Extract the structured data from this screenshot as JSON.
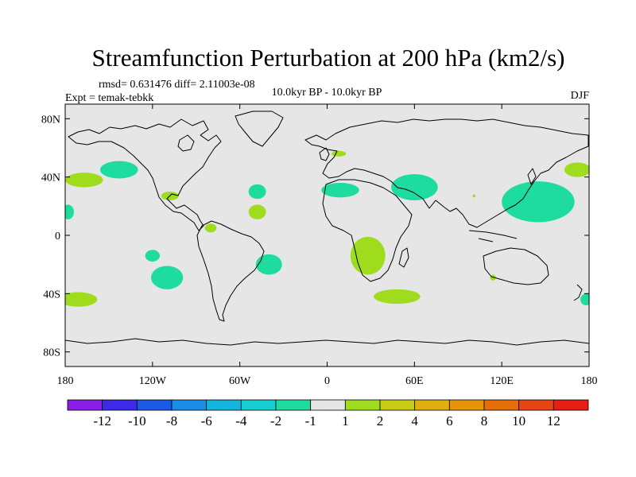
{
  "chart_data": {
    "type": "heatmap",
    "title": "Streamfunction Perturbation at 200 hPa (km2/s)",
    "stats": "rmsd= 0.631476 diff= 2.11003e-08",
    "expt": "Expt = temak-tebkk",
    "subtitle": "10.0kyr BP - 10.0kyr BP",
    "season": "DJF",
    "xlim": [
      -180,
      180
    ],
    "ylim": [
      -90,
      90
    ],
    "x_ticks": [
      {
        "value": -180,
        "label": "180"
      },
      {
        "value": -120,
        "label": "120W"
      },
      {
        "value": -60,
        "label": "60W"
      },
      {
        "value": 0,
        "label": "0"
      },
      {
        "value": 60,
        "label": "60E"
      },
      {
        "value": 120,
        "label": "120E"
      },
      {
        "value": 180,
        "label": "180"
      }
    ],
    "y_ticks": [
      {
        "value": 80,
        "label": "80N"
      },
      {
        "value": 40,
        "label": "40N"
      },
      {
        "value": 0,
        "label": "0"
      },
      {
        "value": -40,
        "label": "40S"
      },
      {
        "value": -80,
        "label": "80S"
      }
    ],
    "background_color": "#e6e6e6",
    "colorbar": {
      "colors": [
        "#8b1ee6",
        "#3c2ae6",
        "#1a5ae6",
        "#1a8ee6",
        "#14b4dc",
        "#16cfcf",
        "#1edca0",
        "#e6e6e6",
        "#a0dc1e",
        "#c8cc14",
        "#e0ae0e",
        "#e6940a",
        "#e66e0a",
        "#e64614",
        "#e61e14"
      ],
      "labels": [
        "-12",
        "-10",
        "-8",
        "-6",
        "-4",
        "-2",
        "-1",
        "1",
        "2",
        "4",
        "6",
        "8",
        "10",
        "12"
      ]
    },
    "anomalies": [
      {
        "name": "n-pacific-east-neg",
        "lon": -143,
        "lat": 45,
        "rlon": 13,
        "rlat": 6,
        "value": -1.5
      },
      {
        "name": "n-pacific-east-pos",
        "lon": -167,
        "lat": 38,
        "rlon": 13,
        "rlat": 5,
        "value": 1.5
      },
      {
        "name": "n-pacific-west-edge-pos",
        "lon": 172,
        "lat": 45,
        "rlon": 9,
        "rlat": 5,
        "value": 1.5
      },
      {
        "name": "w-pacific-neg",
        "lon": 145,
        "lat": 23,
        "rlon": 25,
        "rlat": 14,
        "value": -1.5
      },
      {
        "name": "dateline-neg",
        "lon": -178,
        "lat": 16,
        "rlon": 4,
        "rlat": 5,
        "value": -1.5
      },
      {
        "name": "gulf-mexico-pos",
        "lon": -108,
        "lat": 27,
        "rlon": 6,
        "rlat": 3,
        "value": 1.5
      },
      {
        "name": "atlantic-north-neg",
        "lon": -48,
        "lat": 30,
        "rlon": 6,
        "rlat": 5,
        "value": -1.5
      },
      {
        "name": "atlantic-north-pos",
        "lon": -48,
        "lat": 16,
        "rlon": 6,
        "rlat": 5,
        "value": 1.5
      },
      {
        "name": "n-africa-neg",
        "lon": 9,
        "lat": 31,
        "rlon": 13,
        "rlat": 5,
        "value": -1.5
      },
      {
        "name": "middle-east-neg",
        "lon": 60,
        "lat": 33,
        "rlon": 16,
        "rlat": 9,
        "value": -1.5
      },
      {
        "name": "baltic-pos",
        "lon": 8,
        "lat": 56,
        "rlon": 5,
        "rlat": 2,
        "value": 1.5
      },
      {
        "name": "s-africa-pos",
        "lon": 28,
        "lat": -14,
        "rlon": 12,
        "rlat": 13,
        "value": 1.5
      },
      {
        "name": "s-pacific-neg",
        "lon": -110,
        "lat": -29,
        "rlon": 11,
        "rlat": 8,
        "value": -1.5
      },
      {
        "name": "s-pacific-neg-tail",
        "lon": -120,
        "lat": -14,
        "rlon": 5,
        "rlat": 4,
        "value": -1.5
      },
      {
        "name": "s-atlantic-neg",
        "lon": -40,
        "lat": -20,
        "rlon": 9,
        "rlat": 7,
        "value": -1.5
      },
      {
        "name": "s-indian-pos",
        "lon": 48,
        "lat": -42,
        "rlon": 16,
        "rlat": 5,
        "value": 1.5
      },
      {
        "name": "s-pacific-far-west-pos",
        "lon": -171,
        "lat": -44,
        "rlon": 13,
        "rlat": 5,
        "value": 1.5
      },
      {
        "name": "s-pacific-far-east-neg",
        "lon": 178,
        "lat": -44,
        "rlon": 4,
        "rlat": 4,
        "value": -1.5
      },
      {
        "name": "w-australia-pos",
        "lon": 114,
        "lat": -29,
        "rlon": 2,
        "rlat": 2,
        "value": 1.5
      },
      {
        "name": "panama-pos",
        "lon": -80,
        "lat": 5,
        "rlon": 4,
        "rlat": 3,
        "value": 1.5
      },
      {
        "name": "e-asia-pos",
        "lon": 101,
        "lat": 27,
        "rlon": 1,
        "rlat": 1,
        "value": 1.5
      }
    ]
  }
}
